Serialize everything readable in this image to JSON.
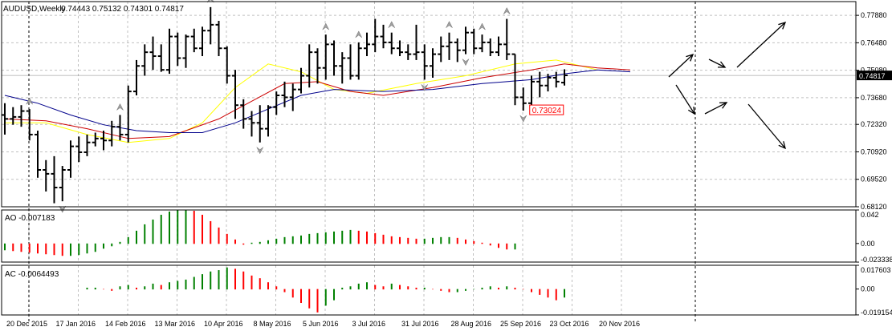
{
  "header": {
    "symbol": "AUDUSD,Weekly",
    "ohlc": "0.74443 0.75132 0.74301 0.74817"
  },
  "colors": {
    "bar": "#000000",
    "ma_yellow": "#ffff00",
    "ma_red": "#cc0000",
    "ma_blue": "#00008b",
    "up_histogram": "#008000",
    "down_histogram": "#ff0000",
    "grid": "#c0c0c0",
    "price_tag_bg": "#000000",
    "low_label": "#ff0000"
  },
  "chart_data": [
    {
      "type": "ohlc",
      "panel": "price",
      "title": "AUDUSD,Weekly",
      "timeframe": "Weekly",
      "y_ticks": [
        "0.77880",
        "0.76480",
        "0.75080",
        "0.73680",
        "0.72320",
        "0.70920",
        "0.69520",
        "0.68120"
      ],
      "ylim": [
        0.6812,
        0.7858
      ],
      "current_price": "0.74817",
      "low_annotation": "0.73024",
      "x_ticks": [
        "20 Dec 2015",
        "17 Jan 2016",
        "14 Feb 2016",
        "13 Mar 2016",
        "10 Apr 2016",
        "8 May 2016",
        "5 Jun 2016",
        "3 Jul 2016",
        "31 Jul 2016",
        "28 Aug 2016",
        "25 Sep 2016",
        "23 Oct 2016",
        "20 Nov 2016"
      ],
      "bars": [
        {
          "o": 0.728,
          "h": 0.734,
          "l": 0.718,
          "c": 0.726
        },
        {
          "o": 0.726,
          "h": 0.732,
          "l": 0.723,
          "c": 0.727
        },
        {
          "o": 0.727,
          "h": 0.733,
          "l": 0.722,
          "c": 0.73
        },
        {
          "o": 0.73,
          "h": 0.731,
          "l": 0.715,
          "c": 0.718
        },
        {
          "o": 0.718,
          "h": 0.72,
          "l": 0.696,
          "c": 0.7
        },
        {
          "o": 0.7,
          "h": 0.705,
          "l": 0.689,
          "c": 0.698
        },
        {
          "o": 0.698,
          "h": 0.707,
          "l": 0.683,
          "c": 0.691
        },
        {
          "o": 0.691,
          "h": 0.702,
          "l": 0.684,
          "c": 0.7
        },
        {
          "o": 0.7,
          "h": 0.715,
          "l": 0.696,
          "c": 0.712
        },
        {
          "o": 0.712,
          "h": 0.717,
          "l": 0.704,
          "c": 0.709
        },
        {
          "o": 0.709,
          "h": 0.718,
          "l": 0.707,
          "c": 0.714
        },
        {
          "o": 0.714,
          "h": 0.719,
          "l": 0.712,
          "c": 0.716
        },
        {
          "o": 0.716,
          "h": 0.72,
          "l": 0.71,
          "c": 0.715
        },
        {
          "o": 0.715,
          "h": 0.725,
          "l": 0.712,
          "c": 0.722
        },
        {
          "o": 0.722,
          "h": 0.728,
          "l": 0.715,
          "c": 0.718
        },
        {
          "o": 0.718,
          "h": 0.743,
          "l": 0.714,
          "c": 0.74
        },
        {
          "o": 0.74,
          "h": 0.756,
          "l": 0.738,
          "c": 0.753
        },
        {
          "o": 0.753,
          "h": 0.764,
          "l": 0.748,
          "c": 0.76
        },
        {
          "o": 0.76,
          "h": 0.768,
          "l": 0.751,
          "c": 0.758
        },
        {
          "o": 0.758,
          "h": 0.764,
          "l": 0.75,
          "c": 0.751
        },
        {
          "o": 0.751,
          "h": 0.772,
          "l": 0.749,
          "c": 0.768
        },
        {
          "o": 0.768,
          "h": 0.77,
          "l": 0.753,
          "c": 0.757
        },
        {
          "o": 0.757,
          "h": 0.769,
          "l": 0.752,
          "c": 0.768
        },
        {
          "o": 0.768,
          "h": 0.772,
          "l": 0.76,
          "c": 0.762
        },
        {
          "o": 0.762,
          "h": 0.773,
          "l": 0.758,
          "c": 0.771
        },
        {
          "o": 0.771,
          "h": 0.783,
          "l": 0.764,
          "c": 0.774
        },
        {
          "o": 0.774,
          "h": 0.776,
          "l": 0.758,
          "c": 0.762
        },
        {
          "o": 0.762,
          "h": 0.763,
          "l": 0.744,
          "c": 0.748
        },
        {
          "o": 0.748,
          "h": 0.751,
          "l": 0.726,
          "c": 0.733
        },
        {
          "o": 0.733,
          "h": 0.736,
          "l": 0.721,
          "c": 0.726
        },
        {
          "o": 0.726,
          "h": 0.73,
          "l": 0.717,
          "c": 0.724
        },
        {
          "o": 0.724,
          "h": 0.733,
          "l": 0.714,
          "c": 0.721
        },
        {
          "o": 0.721,
          "h": 0.733,
          "l": 0.717,
          "c": 0.732
        },
        {
          "o": 0.732,
          "h": 0.74,
          "l": 0.728,
          "c": 0.738
        },
        {
          "o": 0.738,
          "h": 0.745,
          "l": 0.732,
          "c": 0.737
        },
        {
          "o": 0.737,
          "h": 0.744,
          "l": 0.73,
          "c": 0.741
        },
        {
          "o": 0.741,
          "h": 0.752,
          "l": 0.739,
          "c": 0.748
        },
        {
          "o": 0.748,
          "h": 0.764,
          "l": 0.742,
          "c": 0.76
        },
        {
          "o": 0.76,
          "h": 0.762,
          "l": 0.744,
          "c": 0.752
        },
        {
          "o": 0.752,
          "h": 0.769,
          "l": 0.746,
          "c": 0.764
        },
        {
          "o": 0.764,
          "h": 0.766,
          "l": 0.748,
          "c": 0.753
        },
        {
          "o": 0.753,
          "h": 0.76,
          "l": 0.744,
          "c": 0.757
        },
        {
          "o": 0.757,
          "h": 0.764,
          "l": 0.746,
          "c": 0.748
        },
        {
          "o": 0.748,
          "h": 0.765,
          "l": 0.746,
          "c": 0.762
        },
        {
          "o": 0.762,
          "h": 0.77,
          "l": 0.758,
          "c": 0.764
        },
        {
          "o": 0.764,
          "h": 0.777,
          "l": 0.76,
          "c": 0.768
        },
        {
          "o": 0.768,
          "h": 0.774,
          "l": 0.762,
          "c": 0.765
        },
        {
          "o": 0.765,
          "h": 0.77,
          "l": 0.759,
          "c": 0.762
        },
        {
          "o": 0.762,
          "h": 0.766,
          "l": 0.758,
          "c": 0.76
        },
        {
          "o": 0.76,
          "h": 0.764,
          "l": 0.756,
          "c": 0.759
        },
        {
          "o": 0.759,
          "h": 0.774,
          "l": 0.756,
          "c": 0.76
        },
        {
          "o": 0.76,
          "h": 0.764,
          "l": 0.746,
          "c": 0.753
        },
        {
          "o": 0.753,
          "h": 0.762,
          "l": 0.747,
          "c": 0.759
        },
        {
          "o": 0.759,
          "h": 0.768,
          "l": 0.755,
          "c": 0.763
        },
        {
          "o": 0.763,
          "h": 0.77,
          "l": 0.756,
          "c": 0.765
        },
        {
          "o": 0.765,
          "h": 0.767,
          "l": 0.755,
          "c": 0.761
        },
        {
          "o": 0.761,
          "h": 0.773,
          "l": 0.759,
          "c": 0.77
        },
        {
          "o": 0.77,
          "h": 0.772,
          "l": 0.759,
          "c": 0.762
        },
        {
          "o": 0.762,
          "h": 0.769,
          "l": 0.76,
          "c": 0.765
        },
        {
          "o": 0.765,
          "h": 0.767,
          "l": 0.758,
          "c": 0.76
        },
        {
          "o": 0.76,
          "h": 0.768,
          "l": 0.758,
          "c": 0.764
        },
        {
          "o": 0.764,
          "h": 0.777,
          "l": 0.756,
          "c": 0.759
        },
        {
          "o": 0.759,
          "h": 0.759,
          "l": 0.733,
          "c": 0.737
        },
        {
          "o": 0.737,
          "h": 0.742,
          "l": 0.7302,
          "c": 0.734
        },
        {
          "o": 0.734,
          "h": 0.748,
          "l": 0.733,
          "c": 0.745
        },
        {
          "o": 0.745,
          "h": 0.75,
          "l": 0.737,
          "c": 0.743
        },
        {
          "o": 0.743,
          "h": 0.749,
          "l": 0.74,
          "c": 0.747
        },
        {
          "o": 0.747,
          "h": 0.75,
          "l": 0.742,
          "c": 0.745
        },
        {
          "o": 0.7445,
          "h": 0.7513,
          "l": 0.743,
          "c": 0.7482
        }
      ],
      "moving_averages": [
        {
          "color": "#ffff00",
          "points": [
            [
              0,
              0.724
            ],
            [
              5,
              0.724
            ],
            [
              10,
              0.718
            ],
            [
              15,
              0.714
            ],
            [
              20,
              0.716
            ],
            [
              24,
              0.724
            ],
            [
              28,
              0.742
            ],
            [
              32,
              0.754
            ],
            [
              36,
              0.75
            ],
            [
              40,
              0.741
            ],
            [
              44,
              0.739
            ],
            [
              50,
              0.744
            ],
            [
              56,
              0.748
            ],
            [
              62,
              0.754
            ],
            [
              67,
              0.756
            ],
            [
              72,
              0.751
            ]
          ]
        },
        {
          "color": "#cc0000",
          "points": [
            [
              0,
              0.726
            ],
            [
              5,
              0.725
            ],
            [
              10,
              0.721
            ],
            [
              15,
              0.716
            ],
            [
              20,
              0.717
            ],
            [
              26,
              0.726
            ],
            [
              30,
              0.735
            ],
            [
              34,
              0.744
            ],
            [
              38,
              0.745
            ],
            [
              42,
              0.74
            ],
            [
              46,
              0.738
            ],
            [
              52,
              0.742
            ],
            [
              58,
              0.747
            ],
            [
              64,
              0.751
            ],
            [
              68,
              0.754
            ],
            [
              72,
              0.752
            ],
            [
              76,
              0.751
            ]
          ]
        },
        {
          "color": "#00008b",
          "points": [
            [
              0,
              0.738
            ],
            [
              4,
              0.734
            ],
            [
              8,
              0.728
            ],
            [
              12,
              0.723
            ],
            [
              16,
              0.72
            ],
            [
              20,
              0.719
            ],
            [
              24,
              0.719
            ],
            [
              28,
              0.724
            ],
            [
              32,
              0.731
            ],
            [
              36,
              0.738
            ],
            [
              40,
              0.741
            ],
            [
              46,
              0.74
            ],
            [
              52,
              0.741
            ],
            [
              58,
              0.744
            ],
            [
              64,
              0.746
            ],
            [
              68,
              0.749
            ],
            [
              72,
              0.751
            ],
            [
              76,
              0.75
            ]
          ]
        }
      ],
      "fractal_arrows": [
        {
          "bar": 3,
          "dir": "up"
        },
        {
          "bar": 7,
          "dir": "down"
        },
        {
          "bar": 14,
          "dir": "up"
        },
        {
          "bar": 25,
          "dir": "up"
        },
        {
          "bar": 31,
          "dir": "down"
        },
        {
          "bar": 39,
          "dir": "up"
        },
        {
          "bar": 43,
          "dir": "up"
        },
        {
          "bar": 47,
          "dir": "up"
        },
        {
          "bar": 51,
          "dir": "down"
        },
        {
          "bar": 54,
          "dir": "up"
        },
        {
          "bar": 56,
          "dir": "down"
        },
        {
          "bar": 58,
          "dir": "up"
        },
        {
          "bar": 61,
          "dir": "up"
        },
        {
          "bar": 63,
          "dir": "down"
        }
      ]
    },
    {
      "type": "bar",
      "panel": "oscillator",
      "title": "AO -0.007183",
      "y_ticks": [
        "0.042",
        "0.00",
        "-0.023338"
      ],
      "ylim": [
        -0.0233,
        0.042
      ],
      "values": [
        -0.008,
        -0.009,
        -0.01,
        -0.011,
        -0.012,
        -0.013,
        -0.014,
        -0.015,
        -0.015,
        -0.014,
        -0.012,
        -0.01,
        -0.006,
        -0.003,
        0.002,
        0.008,
        0.016,
        0.024,
        0.03,
        0.036,
        0.04,
        0.042,
        0.042,
        0.041,
        0.036,
        0.028,
        0.02,
        0.012,
        0.005,
        -0.001,
        0.001,
        0.002,
        0.004,
        0.006,
        0.008,
        0.009,
        0.01,
        0.012,
        0.013,
        0.014,
        0.015,
        0.016,
        0.017,
        0.016,
        0.015,
        0.013,
        0.011,
        0.009,
        0.008,
        0.007,
        0.006,
        0.006,
        0.007,
        0.008,
        0.008,
        0.007,
        0.005,
        0.003,
        0.001,
        -0.002,
        -0.005,
        -0.007,
        -0.007
      ]
    },
    {
      "type": "bar",
      "panel": "oscillator",
      "title": "AC -0.0064493",
      "y_ticks": [
        "0.017603",
        "0.00",
        "-0.019154"
      ],
      "ylim": [
        -0.0192,
        0.0176
      ],
      "values": [
        0.001,
        0.001,
        0.0,
        -0.001,
        0.002,
        0.003,
        0.001,
        0.002,
        0.004,
        0.003,
        0.005,
        0.006,
        0.007,
        0.009,
        0.011,
        0.013,
        0.014,
        0.016,
        0.015,
        0.013,
        0.01,
        0.008,
        0.005,
        0.002,
        -0.002,
        -0.006,
        -0.01,
        -0.014,
        -0.017,
        -0.012,
        -0.008,
        0.001,
        0.002,
        0.004,
        0.005,
        0.003,
        0.002,
        0.004,
        0.003,
        0.002,
        0.001,
        0.001,
        0.0,
        -0.001,
        -0.002,
        -0.002,
        -0.001,
        0.0,
        0.001,
        0.002,
        0.001,
        0.002,
        0.001,
        0.0,
        -0.002,
        -0.004,
        -0.006,
        -0.008,
        -0.006
      ]
    }
  ]
}
